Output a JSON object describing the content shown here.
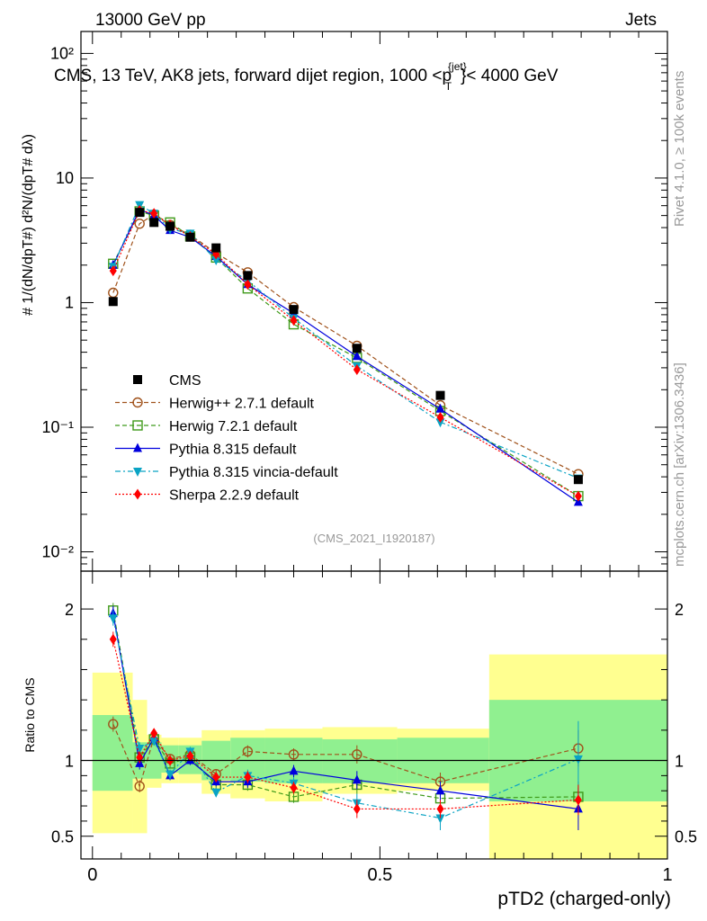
{
  "header": {
    "energy": "13000 GeV pp",
    "category": "Jets"
  },
  "side_labels": {
    "rivet": "Rivet 4.1.0, ≥ 100k events",
    "mcplots": "mcplots.cern.ch [arXiv:1306.3436]"
  },
  "plot_title": "CMS, 13 TeV, AK8 jets, forward dijet region, 1000 <p",
  "plot_title_sup": "{jet}",
  "plot_title_sub": "T",
  "plot_title_tail": "}< 4000 GeV",
  "ylabel_main": "# 1/(dN/dpT#) d²N/(dpT# dλ)",
  "ylabel_ratio": "Ratio to CMS",
  "xlabel": "pTD2 (charged-only)",
  "analysis_id": "(CMS_2021_I1920187)",
  "colors": {
    "cms": "#000000",
    "herwigpp": "#a0521b",
    "herwig7": "#3f9a1a",
    "pythia": "#0000dd",
    "vincia": "#0aa3c4",
    "sherpa": "#ff0000",
    "band_inner": "#90f090",
    "band_outer": "#ffff90"
  },
  "chart_data": {
    "type": "line",
    "main": {
      "yscale": "log",
      "ylim": [
        0.007,
        150
      ],
      "ytick_labels": [
        "10⁻²",
        "10⁻¹",
        "1",
        "10",
        "10²"
      ],
      "ytick_values": [
        0.01,
        0.1,
        1,
        10,
        100
      ]
    },
    "ratio": {
      "ylim": [
        0.35,
        2.25
      ],
      "ytick_values": [
        0.5,
        1,
        2
      ],
      "ytick_labels": [
        "0.5",
        "1",
        "2"
      ]
    },
    "x": {
      "xlim": [
        -0.02,
        1.0
      ],
      "xtick_values": [
        0,
        0.5,
        1
      ],
      "xtick_labels": [
        "0",
        "0.5",
        "1"
      ]
    },
    "bins": [
      {
        "lo": 0.0,
        "hi": 0.07
      },
      {
        "lo": 0.07,
        "hi": 0.095
      },
      {
        "lo": 0.095,
        "hi": 0.12
      },
      {
        "lo": 0.12,
        "hi": 0.15
      },
      {
        "lo": 0.15,
        "hi": 0.19
      },
      {
        "lo": 0.19,
        "hi": 0.24
      },
      {
        "lo": 0.24,
        "hi": 0.3
      },
      {
        "lo": 0.3,
        "hi": 0.4
      },
      {
        "lo": 0.4,
        "hi": 0.53
      },
      {
        "lo": 0.53,
        "hi": 0.69
      },
      {
        "lo": 0.69,
        "hi": 1.0
      }
    ],
    "x_points": [
      0.036,
      0.082,
      0.107,
      0.135,
      0.17,
      0.215,
      0.27,
      0.35,
      0.46,
      0.605,
      0.845
    ],
    "cms": {
      "name": "CMS",
      "values": [
        1.02,
        5.3,
        4.4,
        4.1,
        3.35,
        2.75,
        1.65,
        0.88,
        0.43,
        0.18,
        0.038
      ],
      "ratio_band_inner": [
        [
          0.8,
          1.3
        ],
        [
          0.88,
          1.12
        ],
        [
          0.88,
          1.12
        ],
        [
          0.92,
          1.1
        ],
        [
          0.91,
          1.1
        ],
        [
          0.87,
          1.13
        ],
        [
          0.86,
          1.15
        ],
        [
          0.85,
          1.15
        ],
        [
          0.85,
          1.14
        ],
        [
          0.85,
          1.15
        ],
        [
          0.73,
          1.4
        ]
      ],
      "ratio_band_outer": [
        [
          0.52,
          1.58
        ],
        [
          0.52,
          1.4
        ],
        [
          0.82,
          1.17
        ],
        [
          0.85,
          1.15
        ],
        [
          0.85,
          1.15
        ],
        [
          0.78,
          1.2
        ],
        [
          0.75,
          1.2
        ],
        [
          0.73,
          1.21
        ],
        [
          0.78,
          1.22
        ],
        [
          0.8,
          1.21
        ],
        [
          0.35,
          1.7
        ]
      ]
    },
    "series": [
      {
        "key": "herwigpp",
        "name": "Herwig++ 2.7.1 default",
        "marker": "circle-open",
        "dash": "5,3",
        "values": [
          1.2,
          4.3,
          5.1,
          4.2,
          3.5,
          2.5,
          1.75,
          0.92,
          0.45,
          0.15,
          0.042
        ],
        "ratio": [
          1.24,
          0.83,
          1.15,
          1.01,
          1.04,
          0.91,
          1.06,
          1.04,
          1.04,
          0.86,
          1.08
        ],
        "ratio_err": [
          0.05,
          0.04,
          0.03,
          0.03,
          0.03,
          0.03,
          0.04,
          0.04,
          0.06,
          0.06,
          0.12
        ]
      },
      {
        "key": "herwig7",
        "name": "Herwig 7.2.1 default",
        "marker": "square-open",
        "dash": "5,3",
        "values": [
          2.05,
          5.4,
          5.0,
          4.4,
          3.4,
          2.3,
          1.3,
          0.67,
          0.36,
          0.135,
          0.028
        ],
        "ratio": [
          1.99,
          1.02,
          1.14,
          0.98,
          1.02,
          0.84,
          0.84,
          0.76,
          0.84,
          0.75,
          0.76
        ],
        "ratio_err": [
          0.05,
          0.04,
          0.03,
          0.03,
          0.03,
          0.03,
          0.04,
          0.04,
          0.06,
          0.06,
          0.1
        ]
      },
      {
        "key": "pythia",
        "name": "Pythia 8.315 default",
        "marker": "triangle-up",
        "dash": "",
        "values": [
          2.0,
          5.6,
          5.0,
          3.8,
          3.35,
          2.35,
          1.4,
          0.82,
          0.37,
          0.14,
          0.025
        ],
        "ratio": [
          1.97,
          0.98,
          1.15,
          0.9,
          1.0,
          0.86,
          0.86,
          0.93,
          0.87,
          0.8,
          0.68
        ],
        "ratio_err": [
          0.05,
          0.04,
          0.03,
          0.03,
          0.03,
          0.03,
          0.04,
          0.04,
          0.06,
          0.06,
          0.14
        ]
      },
      {
        "key": "vincia",
        "name": "Pythia 8.315 vincia-default",
        "marker": "triangle-down",
        "dash": "6,3,2,3",
        "values": [
          1.95,
          6.1,
          5.2,
          3.9,
          3.6,
          2.2,
          1.5,
          0.75,
          0.31,
          0.11,
          0.039
        ],
        "ratio": [
          1.94,
          1.08,
          1.13,
          0.91,
          1.06,
          0.79,
          0.9,
          0.85,
          0.72,
          0.62,
          1.01
        ],
        "ratio_err": [
          0.05,
          0.04,
          0.03,
          0.03,
          0.03,
          0.03,
          0.04,
          0.04,
          0.06,
          0.08,
          0.25
        ]
      },
      {
        "key": "sherpa",
        "name": "Sherpa 2.2.9 default",
        "marker": "diamond",
        "dash": "2,2",
        "values": [
          1.8,
          5.5,
          5.2,
          4.2,
          3.4,
          2.45,
          1.4,
          0.72,
          0.29,
          0.12,
          0.028
        ],
        "ratio": [
          1.8,
          1.02,
          1.18,
          1.0,
          1.03,
          0.89,
          0.89,
          0.82,
          0.68,
          0.68,
          0.74
        ],
        "ratio_err": [
          0.05,
          0.04,
          0.03,
          0.03,
          0.03,
          0.03,
          0.04,
          0.04,
          0.06,
          0.06,
          0.1
        ]
      }
    ]
  }
}
